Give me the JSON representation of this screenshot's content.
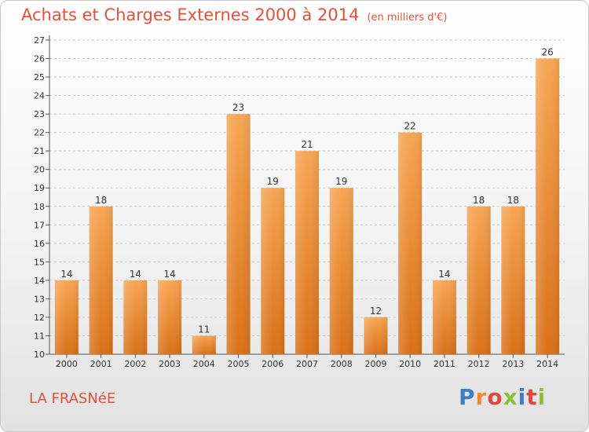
{
  "header": {
    "title": "Achats et Charges Externes 2000 à 2014",
    "subtitle": "(en milliers d'€)"
  },
  "footer": {
    "town": "LA FRASNéE",
    "logo": "Proxiti",
    "logo_colors": [
      "#3f7fc1",
      "#f28a2b",
      "#e0483b",
      "#8dbf3a",
      "#3f7fc1",
      "#e0483b",
      "#8dbf3a"
    ]
  },
  "colors": {
    "title": "#e0523a",
    "bar_top": "#f7a553",
    "bar_bottom": "#d97118",
    "axis": "#555555",
    "grid": "#cccccc"
  },
  "chart_data": {
    "type": "bar",
    "title": "Achats et Charges Externes 2000 à 2014",
    "subtitle": "(en milliers d'€)",
    "xlabel": "",
    "ylabel": "",
    "categories": [
      "2000",
      "2001",
      "2002",
      "2003",
      "2004",
      "2005",
      "2006",
      "2007",
      "2008",
      "2009",
      "2010",
      "2011",
      "2012",
      "2013",
      "2014"
    ],
    "values": [
      14,
      18,
      14,
      14,
      11,
      23,
      19,
      21,
      19,
      12,
      22,
      14,
      18,
      18,
      26
    ],
    "ylim": [
      10,
      27
    ],
    "yticks": [
      10,
      11,
      12,
      13,
      14,
      15,
      16,
      17,
      18,
      19,
      20,
      21,
      22,
      23,
      24,
      25,
      26,
      27
    ],
    "grid": true,
    "legend": "none"
  }
}
